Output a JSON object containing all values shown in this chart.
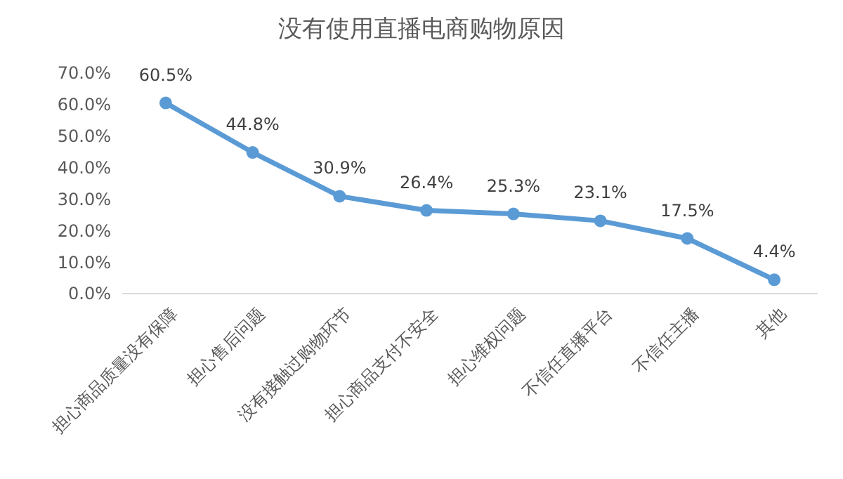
{
  "chart_data": {
    "type": "line",
    "title": "没有使用直播电商购物原因",
    "categories": [
      "担心商品质量没有保障",
      "担心售后问题",
      "没有接触过购物环节",
      "担心商品支付不安全",
      "担心维权问题",
      "不信任直播平台",
      "不信任主播",
      "其他"
    ],
    "series": [
      {
        "color": "#5b9bd5",
        "values": [
          60.5,
          44.8,
          30.9,
          26.4,
          25.3,
          23.1,
          17.5,
          4.4
        ]
      }
    ],
    "value_labels": [
      "60.5%",
      "44.8%",
      "30.9%",
      "26.4%",
      "25.3%",
      "23.1%",
      "17.5%",
      "4.4%"
    ],
    "ylim": [
      0,
      70
    ],
    "yticks": [
      {
        "value": 0,
        "label": "0.0%"
      },
      {
        "value": 10,
        "label": "10.0%"
      },
      {
        "value": 20,
        "label": "20.0%"
      },
      {
        "value": 30,
        "label": "30.0%"
      },
      {
        "value": 40,
        "label": "40.0%"
      },
      {
        "value": 50,
        "label": "50.0%"
      },
      {
        "value": 60,
        "label": "60.0%"
      },
      {
        "value": 70,
        "label": "70.0%"
      }
    ],
    "grid": false,
    "marker": "circle",
    "line_style": "solid"
  }
}
